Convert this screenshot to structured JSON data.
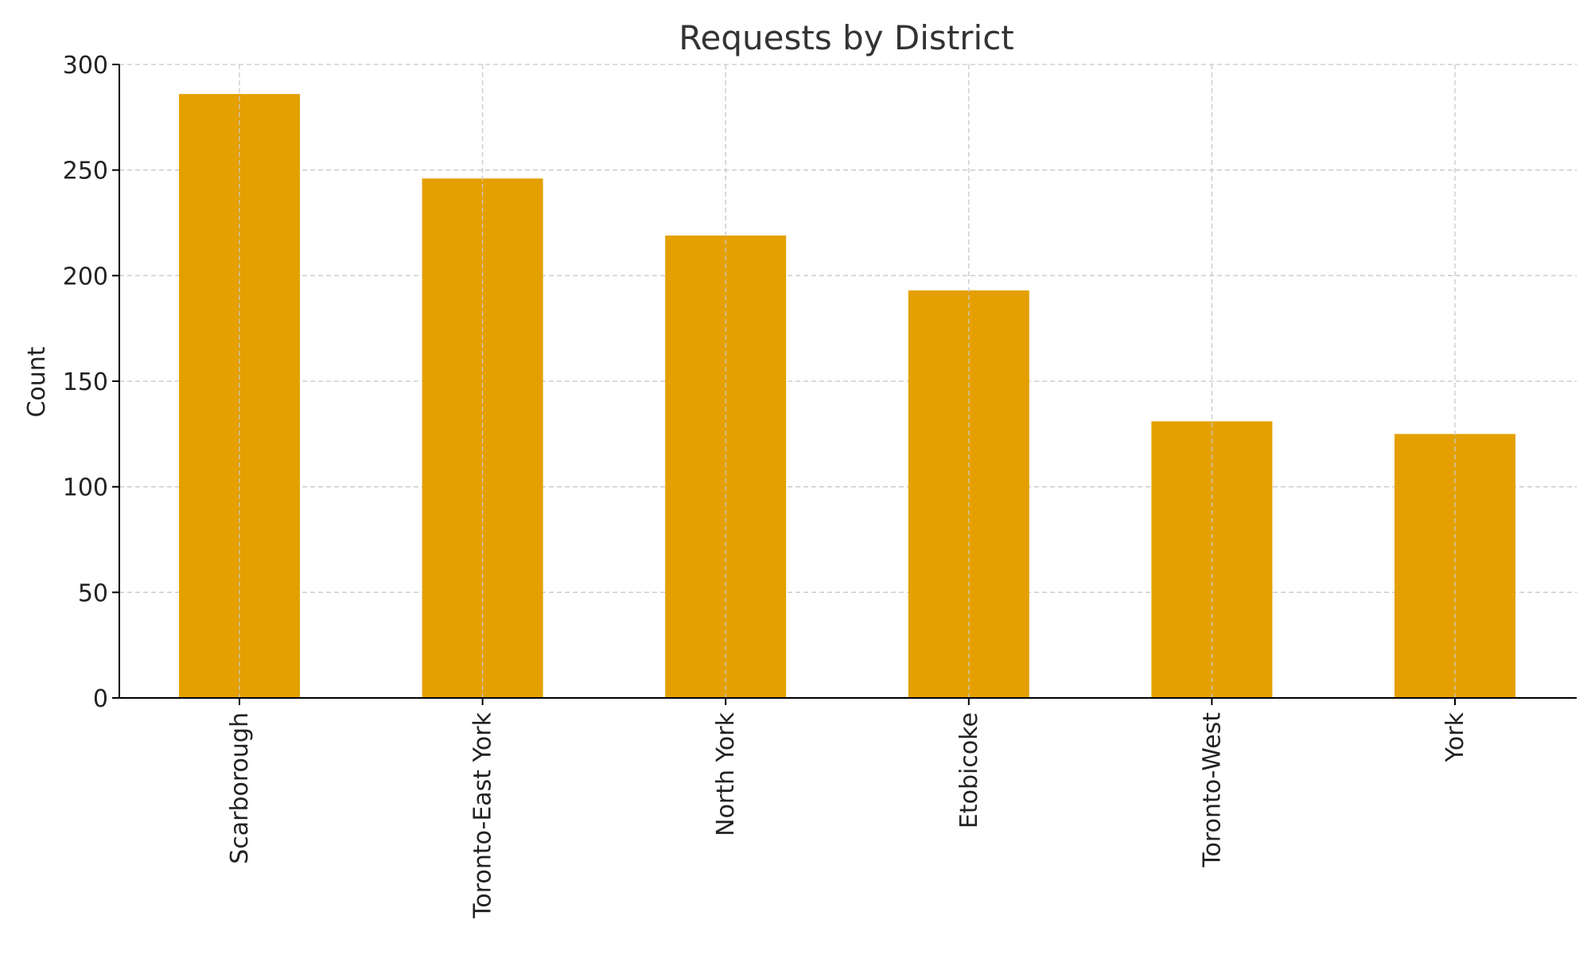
{
  "chart_data": {
    "type": "bar",
    "title": "Requests by District",
    "xlabel": "",
    "ylabel": "Count",
    "categories": [
      "Scarborough",
      "Toronto-East York",
      "North York",
      "Etobicoke",
      "Toronto-West",
      "York"
    ],
    "values": [
      286,
      246,
      219,
      193,
      131,
      125
    ],
    "ylim": [
      0,
      300
    ],
    "yticks": [
      0,
      50,
      100,
      150,
      200,
      250,
      300
    ],
    "grid": true,
    "bar_color": "#e3a000",
    "grid_color": "#c8c8c8"
  }
}
